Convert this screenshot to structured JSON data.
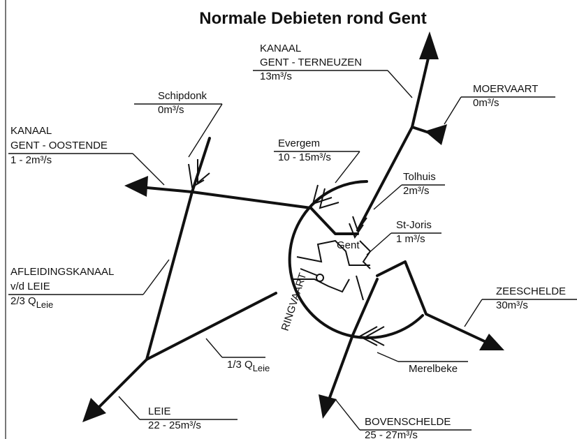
{
  "title": "Normale Debieten rond Gent",
  "labels": [
    {
      "lines": [
        "KANAAL",
        "GENT - TERNEUZEN",
        "13m³/s"
      ]
    },
    {
      "lines": [
        "MOERVAART",
        "0m³/s"
      ]
    },
    {
      "lines": [
        "Schipdonk",
        "0m³/s"
      ]
    },
    {
      "lines": [
        "KANAAL",
        "GENT - OOSTENDE",
        "1 - 2m³/s"
      ]
    },
    {
      "lines": [
        "Evergem",
        "10 - 15m³/s"
      ]
    },
    {
      "lines": [
        "Tolhuis",
        "2m³/s"
      ]
    },
    {
      "lines": [
        "St-Joris",
        "1 m³/s"
      ]
    },
    {
      "lines": [
        "AFLEIDINGSKANAAL",
        "v/d LEIE",
        "2/3 Q"
      ],
      "sub": "Leie"
    },
    {
      "lines": [
        "ZEESCHELDE",
        "30m³/s"
      ]
    },
    {
      "lines": [
        "1/3 Q"
      ],
      "sub": "Leie"
    },
    {
      "lines": [
        "Merelbeke"
      ]
    },
    {
      "lines": [
        "LEIE",
        "22 - 25m³/s"
      ]
    },
    {
      "lines": [
        "BOVENSCHELDE",
        "25 - 27m³/s"
      ]
    }
  ],
  "city": "Gent",
  "ring": "RINGVAART"
}
